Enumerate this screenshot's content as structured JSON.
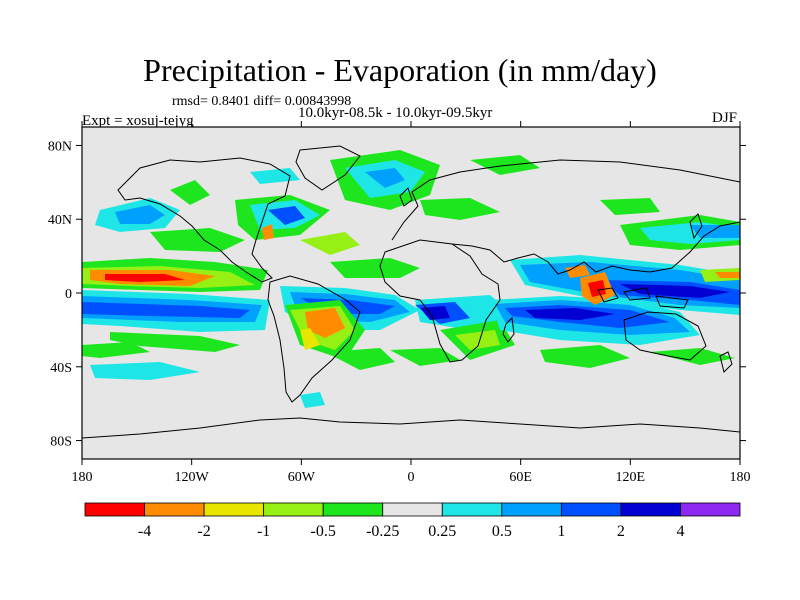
{
  "title": "Precipitation - Evaporation (in mm/day)",
  "stats": "rmsd= 0.8401  diff= 0.00843998",
  "experiment": "Expt = xosuj-tejyg",
  "period": "10.0kyr-08.5k - 10.0kyr-09.5kyr",
  "season": "DJF",
  "map": {
    "lon_range": [
      -180,
      180
    ],
    "lat_range": [
      -90,
      90
    ],
    "ocean_color": "#e6e6e6",
    "lat_ticks": [
      {
        "value": 80,
        "label": "80N"
      },
      {
        "value": 40,
        "label": "40N"
      },
      {
        "value": 0,
        "label": "0"
      },
      {
        "value": -40,
        "label": "40S"
      },
      {
        "value": -80,
        "label": "80S"
      }
    ],
    "lon_ticks": [
      {
        "value": -180,
        "label": "180"
      },
      {
        "value": -120,
        "label": "120W"
      },
      {
        "value": -60,
        "label": "60W"
      },
      {
        "value": 0,
        "label": "0"
      },
      {
        "value": 60,
        "label": "60E"
      },
      {
        "value": 120,
        "label": "120E"
      },
      {
        "value": 180,
        "label": "180"
      }
    ]
  },
  "colorbar": {
    "colors": [
      "#ff0000",
      "#ff8c00",
      "#e6e600",
      "#96f014",
      "#1ee61e",
      "#e6e6e6",
      "#1ee6e6",
      "#00a0ff",
      "#0050ff",
      "#0000d2",
      "#8c28f0"
    ],
    "labels": [
      "-4",
      "-2",
      "-1",
      "-0.5",
      "-0.25",
      "0.25",
      "0.5",
      "1",
      "2",
      "4"
    ]
  }
}
